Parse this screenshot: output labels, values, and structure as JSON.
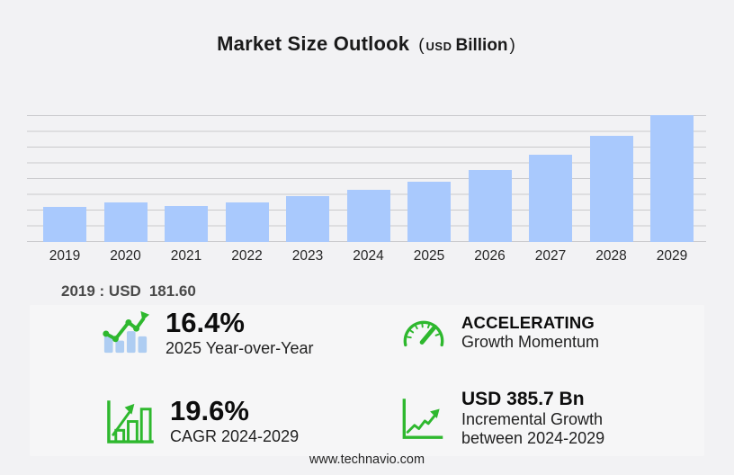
{
  "title": {
    "main": "Market Size Outlook",
    "paren_open": "(",
    "currency": "USD",
    "scale": "Billion",
    "paren_close": ")"
  },
  "chart_data": {
    "type": "bar",
    "title": "Market Size Outlook (USD Billion)",
    "categories": [
      "2019",
      "2020",
      "2021",
      "2022",
      "2023",
      "2024",
      "2025",
      "2026",
      "2027",
      "2028",
      "2029"
    ],
    "values": [
      181.6,
      204.3,
      183.2,
      203.8,
      235.1,
      266.7,
      310.4,
      370.0,
      448.0,
      545.0,
      652.4
    ],
    "unit": "USD Billion",
    "ylim": [
      0,
      720
    ],
    "grid": true,
    "legend": false,
    "bar_color": "#a9c9fd",
    "gridline_color": "#c9c9cc"
  },
  "base_year_note": {
    "prefix": "2019 : USD",
    "value": "181.60"
  },
  "stats": [
    {
      "icon": "bar-chart-trend-up-icon",
      "value": "16.4%",
      "label": "2025 Year-over-Year"
    },
    {
      "icon": "speedometer-icon",
      "value": "ACCELERATING",
      "label": "Growth Momentum"
    },
    {
      "icon": "bar-chart-growth-icon",
      "value": "19.6%",
      "label": "CAGR 2024-2029"
    },
    {
      "icon": "line-chart-arrow-icon",
      "value": "USD 385.7 Bn",
      "label": "Incremental Growth between 2024-2029"
    }
  ],
  "footer": {
    "website": "www.technavio.com"
  },
  "colors": {
    "background": "#f2f2f4",
    "card_background": "#f6f6f7",
    "bar_blue": "#a9c9fd",
    "icon_bar_blue": "#aecdf2",
    "accent_green": "#2eb82e",
    "gridline": "#c9c9cc"
  }
}
